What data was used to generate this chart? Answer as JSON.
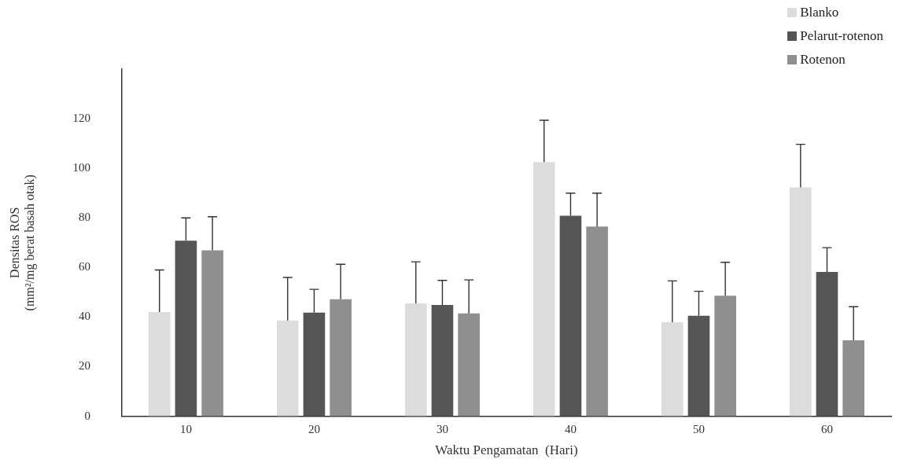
{
  "chart_data": {
    "type": "bar",
    "xlabel": "Waktu Pengamatan  (Hari)",
    "ylabel": "Densitas ROS\n(mm²/mg berat basah otak)",
    "categories": [
      "10",
      "20",
      "30",
      "40",
      "50",
      "60"
    ],
    "series": [
      {
        "name": "Blanko",
        "color": "#dcdcdc",
        "values": [
          42,
          38.6,
          45.5,
          102.5,
          37.9,
          92.3
        ],
        "errors": [
          [
            42,
            59
          ],
          [
            38.6,
            56
          ],
          [
            45.5,
            62.3
          ],
          [
            102.5,
            119.4
          ],
          [
            37.9,
            54.6
          ],
          [
            92.3,
            109.7
          ]
        ]
      },
      {
        "name": "Pelarut-rotenon",
        "color": "#555555",
        "values": [
          70.8,
          41.8,
          44.9,
          80.9,
          40.5,
          58.2
        ],
        "errors": [
          [
            70.8,
            80
          ],
          [
            41.8,
            51.2
          ],
          [
            44.9,
            54.8
          ],
          [
            80.9,
            90
          ],
          [
            40.5,
            50.4
          ],
          [
            58.2,
            68
          ]
        ]
      },
      {
        "name": "Rotenon",
        "color": "#8f8f8f",
        "values": [
          66.9,
          47.2,
          41.5,
          76.5,
          48.6,
          30.6
        ],
        "errors": [
          [
            66.9,
            80.5
          ],
          [
            47.2,
            61.3
          ],
          [
            41.5,
            55
          ],
          [
            76.5,
            90
          ],
          [
            48.6,
            62.1
          ],
          [
            30.6,
            44.2
          ]
        ]
      }
    ],
    "ylim": [
      0,
      140
    ],
    "yticks": [
      0,
      20,
      40,
      60,
      80,
      100,
      120
    ],
    "grid": false,
    "legend": "top right"
  }
}
